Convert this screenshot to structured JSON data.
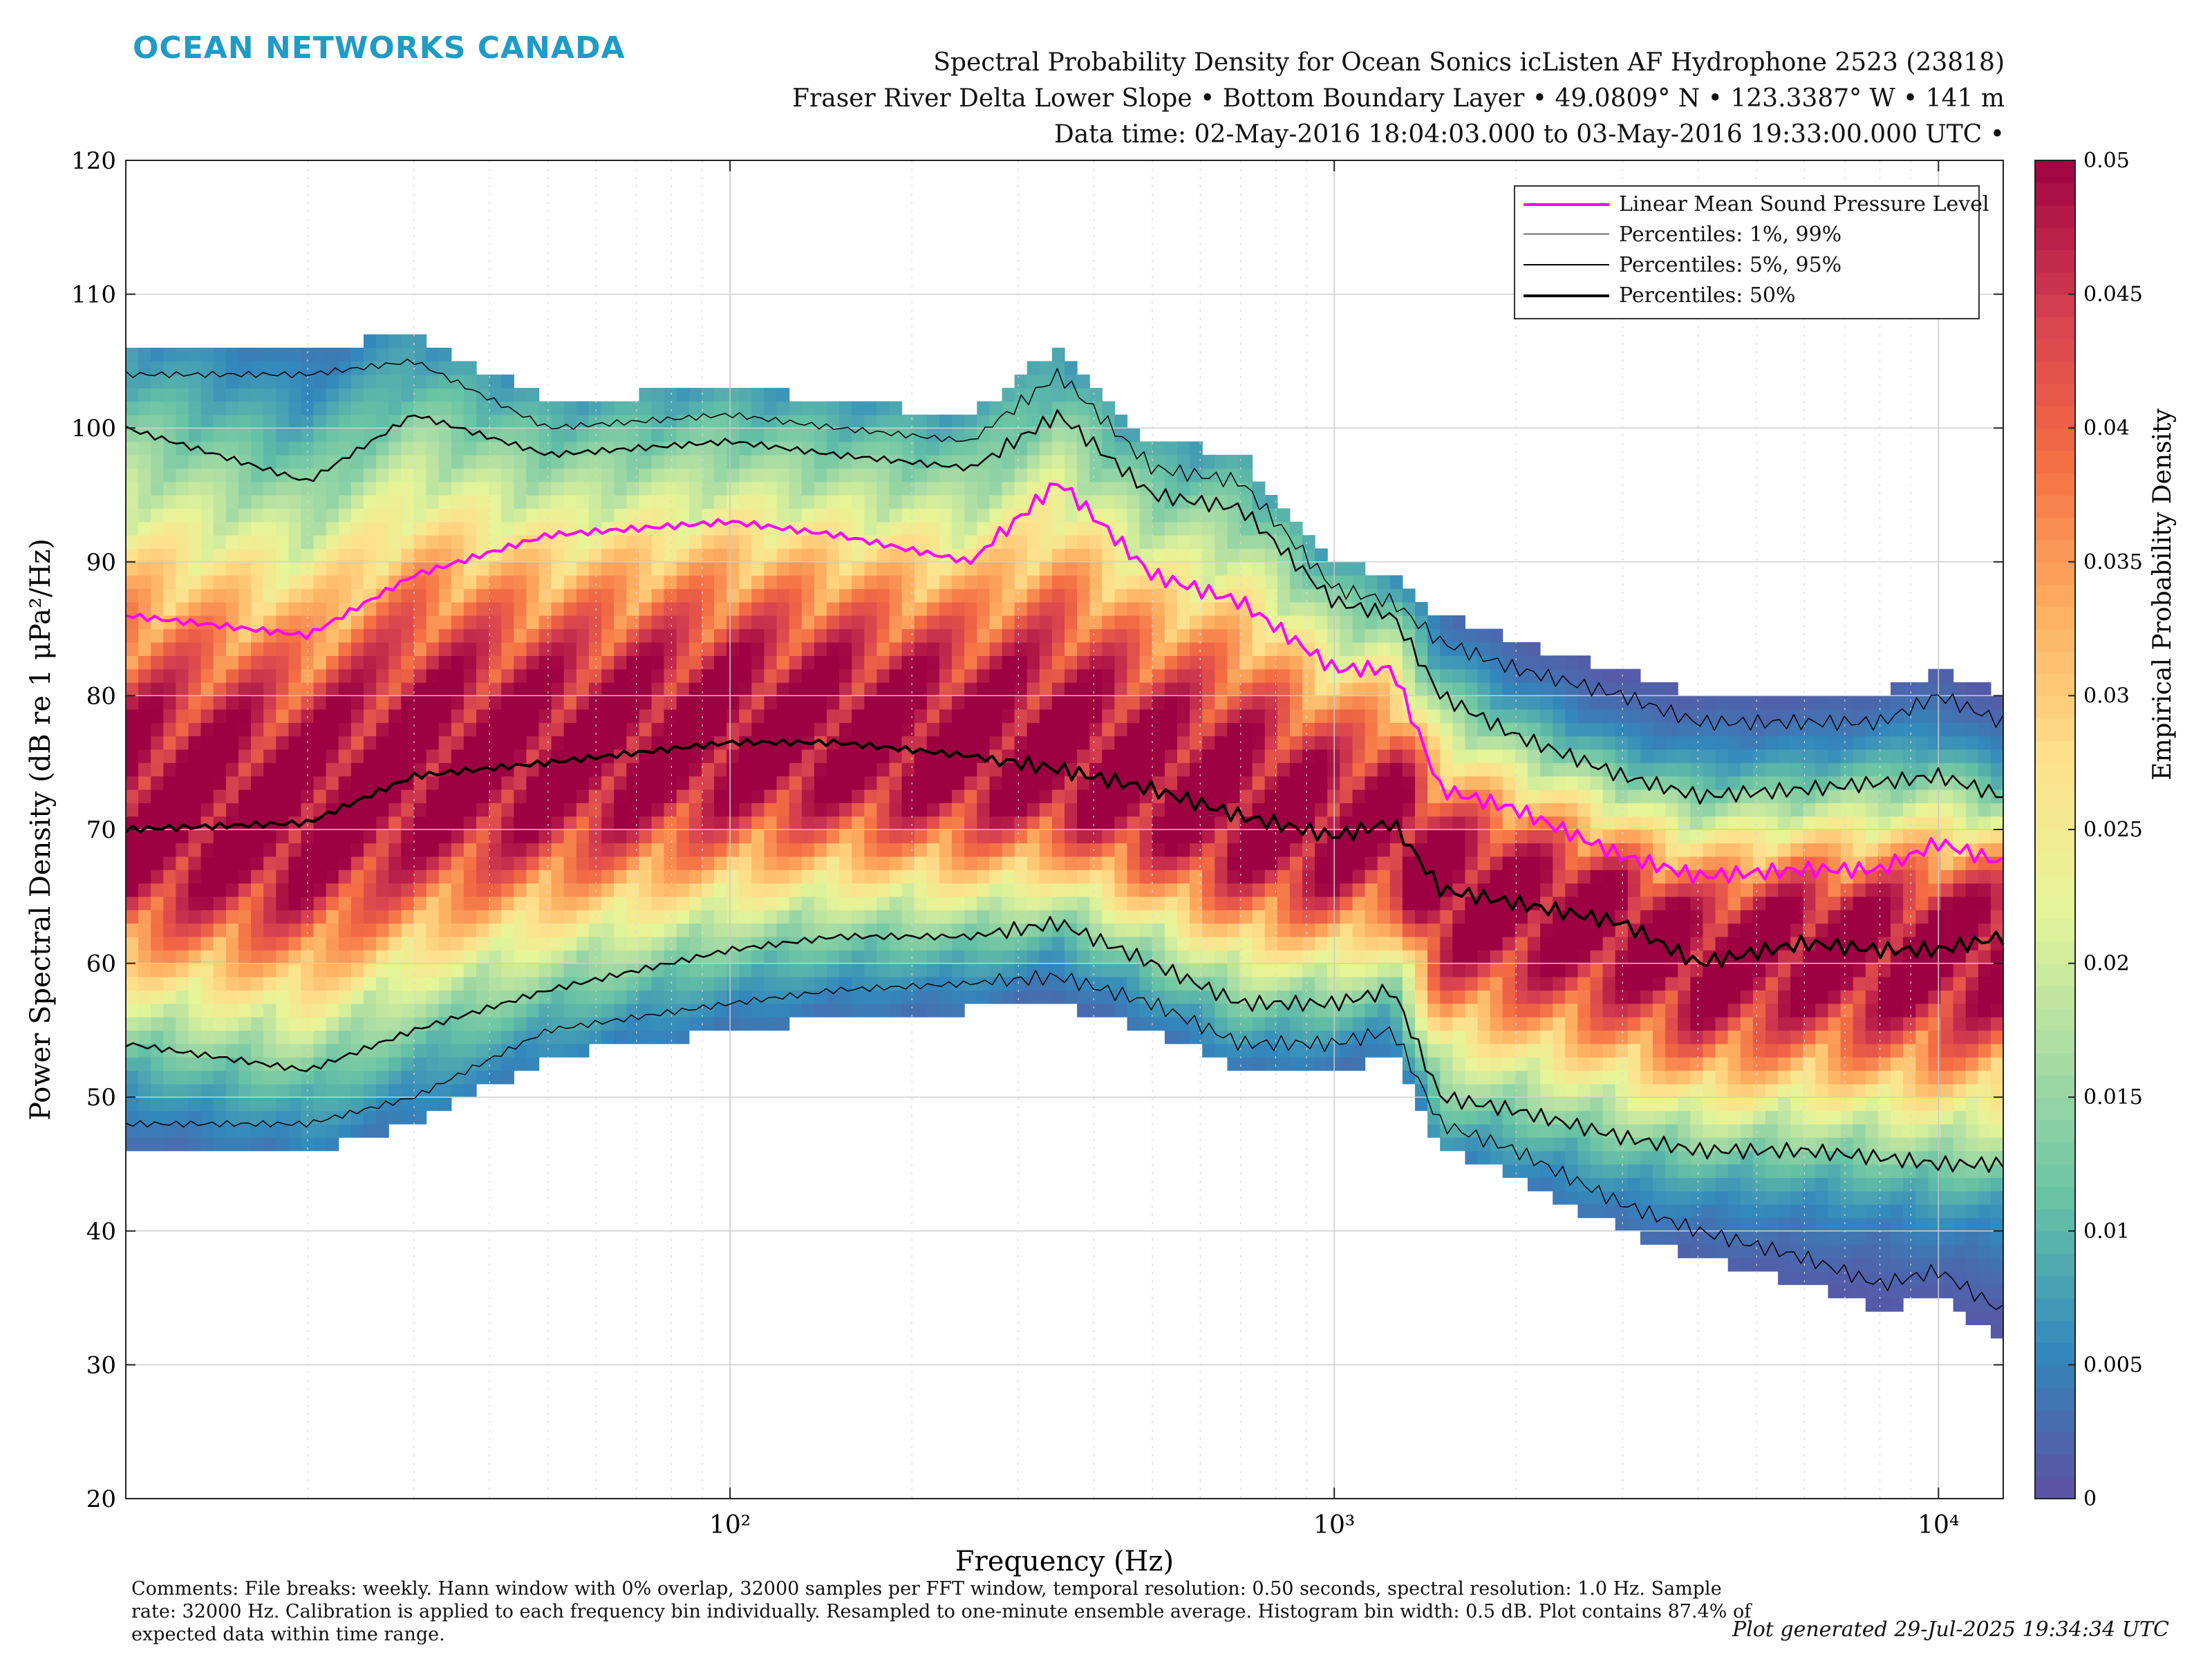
{
  "header": {
    "brand": "OCEAN NETWORKS CANADA",
    "title_line1": "Spectral Probability Density for Ocean Sonics icListen AF Hydrophone 2523 (23818)",
    "title_line2": "Fraser River Delta Lower Slope • Bottom Boundary Layer • 49.0809° N • 123.3387° W • 141 m",
    "title_line3": "Data time: 02-May-2016 18:04:03.000 to 03-May-2016 19:33:00.000 UTC •"
  },
  "footer": {
    "comments": "Comments: File breaks: weekly. Hann window with 0% overlap, 32000 samples per FFT window, temporal resolution: 0.50 seconds, spectral resolution: 1.0 Hz. Sample rate: 32000 Hz. Calibration is applied to each frequency bin individually. Resampled to one-minute ensemble average. Histogram bin width: 0.5 dB. Plot contains 87.4% of expected data within time range.",
    "generated": "Plot generated 29-Jul-2025 19:34:34 UTC"
  },
  "colors": {
    "mean_line": "#ff00ff",
    "percentile_line": "#000000",
    "colormap": [
      "#5e4fa2",
      "#3288bd",
      "#66c2a5",
      "#abdda4",
      "#e6f598",
      "#fee08b",
      "#fdae61",
      "#f46d43",
      "#d53e4f",
      "#9e0142"
    ]
  },
  "chart_data": {
    "type": "heatmap",
    "xlabel": "Frequency (Hz)",
    "ylabel": "Power Spectral Density (dB re 1 μPa²/Hz)",
    "colorbar_label": "Empirical Probability Density",
    "x_scale": "log",
    "xlim": [
      10,
      12800
    ],
    "ylim": [
      20,
      120
    ],
    "clim": [
      0,
      0.05
    ],
    "grid": true,
    "x_ticks": [
      100,
      1000,
      10000
    ],
    "x_tick_labels": [
      "10²",
      "10³",
      "10⁴"
    ],
    "y_ticks": [
      20,
      30,
      40,
      50,
      60,
      70,
      80,
      90,
      100,
      110,
      120
    ],
    "colorbar_ticks": [
      0,
      0.005,
      0.01,
      0.015,
      0.02,
      0.025,
      0.03,
      0.035,
      0.04,
      0.045,
      0.05
    ],
    "legend_position": "top-right",
    "legend": [
      "Linear Mean Sound Pressure Level",
      "Percentiles: 1%, 99%",
      "Percentiles: 5%, 95%",
      "Percentiles: 50%"
    ],
    "frequency_hz": [
      10,
      20,
      30,
      50,
      100,
      150,
      250,
      350,
      500,
      700,
      1000,
      1250,
      1500,
      2000,
      3000,
      4000,
      6000,
      8000,
      10000,
      12800
    ],
    "series": [
      {
        "name": "Linear Mean Sound Pressure Level",
        "values": [
          86,
          84.5,
          89,
          92,
          93,
          92,
          90,
          96,
          89,
          87,
          82,
          82,
          73,
          71.5,
          68,
          66.5,
          67,
          67,
          69,
          67.5
        ]
      },
      {
        "name": "Percentiles: 99%",
        "values": [
          104,
          104,
          105,
          100,
          101,
          100,
          99,
          104,
          97,
          96,
          88,
          87,
          84,
          82,
          80,
          78,
          78,
          78,
          80,
          78
        ]
      },
      {
        "name": "Percentiles: 95%",
        "values": [
          100,
          96,
          101,
          98,
          99,
          98,
          97,
          101,
          95,
          94,
          87,
          86,
          80,
          77,
          74,
          72.5,
          73,
          73.5,
          74,
          72.5
        ]
      },
      {
        "name": "Percentiles: 50%",
        "values": [
          70,
          70.5,
          74,
          75,
          76.5,
          76.5,
          75.5,
          74.5,
          73,
          71,
          69.5,
          70.5,
          65.5,
          64.5,
          63,
          60,
          61.5,
          61,
          61,
          62
        ]
      },
      {
        "name": "Percentiles: 5%",
        "values": [
          54,
          52,
          55,
          58,
          61,
          62,
          62,
          63,
          60,
          57,
          57,
          58,
          50,
          49,
          47,
          46,
          46,
          45.5,
          45,
          45
        ]
      },
      {
        "name": "Percentiles: 1%",
        "values": [
          48,
          48,
          50,
          55,
          57,
          58,
          58.5,
          59,
          57,
          54,
          54,
          55,
          48,
          46,
          42,
          40,
          38,
          36,
          37,
          34
        ]
      }
    ]
  }
}
